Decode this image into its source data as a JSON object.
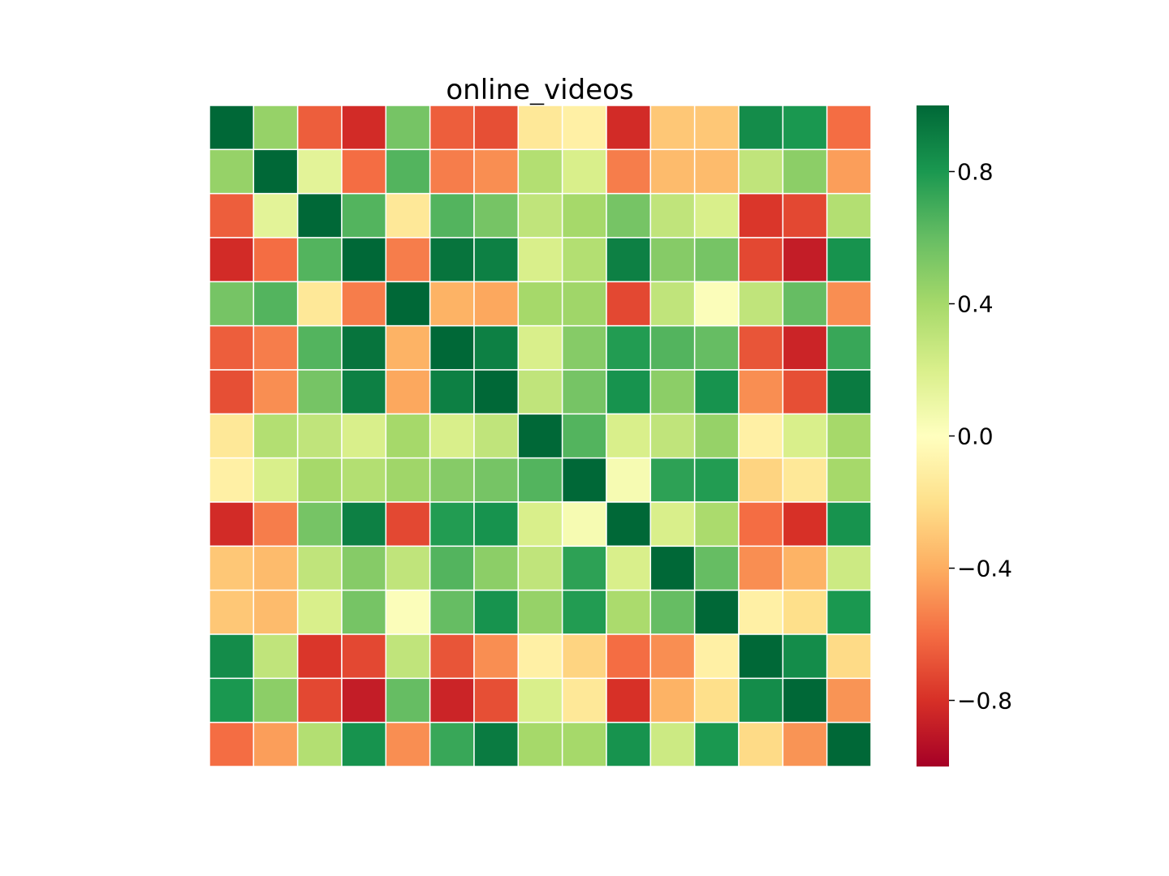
{
  "chart_data": {
    "type": "heatmap",
    "title": "online_videos",
    "xlabel": "",
    "ylabel": "",
    "rows": 15,
    "cols": 15,
    "colormap": "RdYlGn",
    "vmin": -1.0,
    "vmax": 1.0,
    "grid_lines": true,
    "grid_color": "#ffffff",
    "colorbar": {
      "position": "right",
      "ticks": [
        0.8,
        0.4,
        0.0,
        -0.4,
        -0.8
      ],
      "tick_labels": [
        "0.8",
        "0.4",
        "0.0",
        "−0.4",
        "−0.8"
      ]
    },
    "values": [
      [
        1.0,
        0.45,
        -0.65,
        -0.82,
        0.55,
        -0.65,
        -0.7,
        -0.15,
        -0.1,
        -0.82,
        -0.3,
        -0.3,
        0.85,
        0.8,
        -0.6
      ],
      [
        0.45,
        1.0,
        0.15,
        -0.6,
        0.65,
        -0.55,
        -0.5,
        0.35,
        0.2,
        -0.55,
        -0.35,
        -0.35,
        0.3,
        0.48,
        -0.45
      ],
      [
        -0.65,
        0.15,
        1.0,
        0.65,
        -0.15,
        0.65,
        0.55,
        0.3,
        0.4,
        0.55,
        0.3,
        0.2,
        -0.78,
        -0.72,
        0.35
      ],
      [
        -0.82,
        -0.6,
        0.65,
        1.0,
        -0.55,
        0.95,
        0.9,
        0.2,
        0.35,
        0.9,
        0.5,
        0.55,
        -0.72,
        -0.88,
        0.82
      ],
      [
        0.55,
        0.65,
        -0.15,
        -0.55,
        1.0,
        -0.38,
        -0.42,
        0.4,
        0.42,
        -0.72,
        0.3,
        0.02,
        0.3,
        0.6,
        -0.5
      ],
      [
        -0.65,
        -0.55,
        0.65,
        0.95,
        -0.38,
        1.0,
        0.9,
        0.2,
        0.5,
        0.78,
        0.65,
        0.6,
        -0.68,
        -0.85,
        0.72
      ],
      [
        -0.7,
        -0.5,
        0.55,
        0.9,
        -0.42,
        0.9,
        1.0,
        0.3,
        0.55,
        0.82,
        0.48,
        0.82,
        -0.5,
        -0.7,
        0.92
      ],
      [
        -0.15,
        0.35,
        0.3,
        0.2,
        0.4,
        0.2,
        0.3,
        1.0,
        0.65,
        0.2,
        0.3,
        0.45,
        -0.1,
        0.2,
        0.4
      ],
      [
        -0.1,
        0.2,
        0.4,
        0.35,
        0.42,
        0.5,
        0.55,
        0.65,
        1.0,
        0.05,
        0.75,
        0.78,
        -0.25,
        -0.15,
        0.4
      ],
      [
        -0.82,
        -0.55,
        0.55,
        0.9,
        -0.72,
        0.78,
        0.82,
        0.2,
        0.05,
        1.0,
        0.2,
        0.38,
        -0.6,
        -0.8,
        0.82
      ],
      [
        -0.3,
        -0.35,
        0.3,
        0.5,
        0.3,
        0.65,
        0.48,
        0.3,
        0.75,
        0.2,
        1.0,
        0.6,
        -0.5,
        -0.38,
        0.25
      ],
      [
        -0.3,
        -0.35,
        0.2,
        0.55,
        0.02,
        0.6,
        0.82,
        0.45,
        0.78,
        0.38,
        0.6,
        1.0,
        -0.1,
        -0.2,
        0.8
      ],
      [
        0.85,
        0.3,
        -0.78,
        -0.72,
        0.3,
        -0.68,
        -0.5,
        -0.1,
        -0.25,
        -0.6,
        -0.5,
        -0.1,
        1.0,
        0.85,
        -0.22
      ],
      [
        0.8,
        0.48,
        -0.72,
        -0.88,
        0.6,
        -0.85,
        -0.7,
        0.2,
        -0.15,
        -0.8,
        -0.38,
        -0.2,
        0.85,
        1.0,
        -0.48
      ],
      [
        -0.6,
        -0.45,
        0.35,
        0.82,
        -0.5,
        0.72,
        0.92,
        0.4,
        0.4,
        0.82,
        0.25,
        0.8,
        -0.22,
        -0.48,
        1.0
      ]
    ]
  }
}
